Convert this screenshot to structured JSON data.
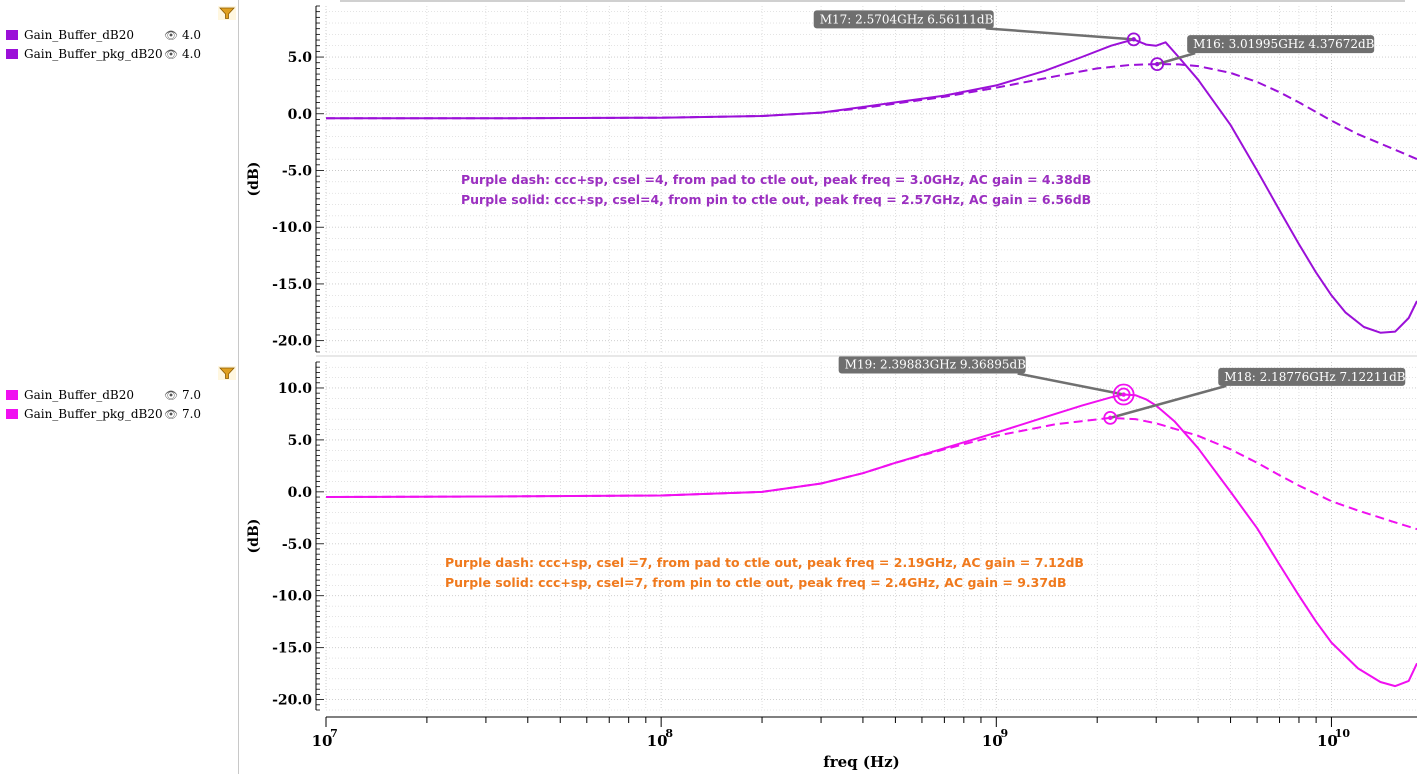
{
  "colors": {
    "top_series": "#9b10d8",
    "bottom_series": "#f010f0",
    "top_note": "#9b2fc0",
    "bottom_note": "#f07a1e",
    "marker_box": "#6f6f6f",
    "grid": "#c9c9c9"
  },
  "legends": [
    {
      "items": [
        {
          "name": "Gain_Buffer_dB20",
          "value": "4.0",
          "color": "#9b10d8"
        },
        {
          "name": "Gain_Buffer_pkg_dB20",
          "value": "4.0",
          "color": "#9b10d8"
        }
      ]
    },
    {
      "items": [
        {
          "name": "Gain_Buffer_dB20",
          "value": "7.0",
          "color": "#f010f0"
        },
        {
          "name": "Gain_Buffer_pkg_dB20",
          "value": "7.0",
          "color": "#f010f0"
        }
      ]
    }
  ],
  "xlabel": "freq (Hz)",
  "icons": {
    "legend_filter": "filter-funnel-icon",
    "legend_visibility": "eye-icon"
  },
  "chart_data": [
    {
      "type": "line",
      "x_scale": "log",
      "xlim": [
        10000000.0,
        18000000000.0
      ],
      "ylim": [
        -21,
        9.5
      ],
      "ylabel": "(dB)",
      "yticks": [
        5.0,
        0.0,
        -5.0,
        -10.0,
        -15.0,
        -20.0
      ],
      "ytick_labels": [
        "5.0",
        "0.0",
        "-5.0",
        "-10.0",
        "-15.0",
        "-20.0"
      ],
      "series": [
        {
          "name": "Gain_Buffer_dB20",
          "style": "solid",
          "color": "#9b10d8",
          "x": [
            10000000.0,
            30000000.0,
            100000000.0,
            200000000.0,
            300000000.0,
            400000000.0,
            500000000.0,
            700000000.0,
            1000000000.0,
            1400000000.0,
            1800000000.0,
            2200000000.0,
            2570400000.0,
            2800000000.0,
            3000000000.0,
            3200000000.0,
            3500000000.0,
            4000000000.0,
            5000000000.0,
            6000000000.0,
            7000000000.0,
            8000000000.0,
            9000000000.0,
            10000000000.0,
            11000000000.0,
            12500000000.0,
            14000000000.0,
            15500000000.0,
            17000000000.0,
            18000000000.0
          ],
          "y": [
            -0.4,
            -0.4,
            -0.35,
            -0.2,
            0.1,
            0.6,
            1.0,
            1.6,
            2.5,
            3.8,
            5.0,
            6.0,
            6.56,
            6.1,
            6.0,
            6.3,
            5.0,
            3.0,
            -1.0,
            -5.0,
            -8.5,
            -11.5,
            -14.0,
            -16.0,
            -17.5,
            -18.8,
            -19.3,
            -19.2,
            -18.0,
            -16.5
          ]
        },
        {
          "name": "Gain_Buffer_pkg_dB20",
          "style": "dash",
          "color": "#9b10d8",
          "x": [
            10000000.0,
            30000000.0,
            100000000.0,
            200000000.0,
            300000000.0,
            400000000.0,
            500000000.0,
            700000000.0,
            1000000000.0,
            1500000000.0,
            2000000000.0,
            2500000000.0,
            3000000000.0,
            3500000000.0,
            4000000000.0,
            5000000000.0,
            6000000000.0,
            7000000000.0,
            8000000000.0,
            10000000000.0,
            12000000000.0,
            15000000000.0,
            18000000000.0
          ],
          "y": [
            -0.4,
            -0.4,
            -0.35,
            -0.2,
            0.1,
            0.5,
            0.9,
            1.5,
            2.3,
            3.3,
            4.0,
            4.3,
            4.38,
            4.35,
            4.2,
            3.6,
            2.8,
            1.9,
            1.0,
            -0.6,
            -1.8,
            -3.0,
            -4.0
          ]
        }
      ],
      "markers": [
        {
          "label": "M17: 2.5704GHz 6.56111dB",
          "x": 2570400000.0,
          "y": 6.56111
        },
        {
          "label": "M16: 3.01995GHz 4.37672dB",
          "x": 3019950000.0,
          "y": 4.37672
        }
      ],
      "annotations": [
        "Purple dash: ccc+sp, csel =4, from pad to ctle out, peak freq = 3.0GHz, AC gain = 4.38dB",
        "Purple solid: ccc+sp, csel=4,  from pin to ctle out, peak freq = 2.57GHz, AC gain = 6.56dB"
      ]
    },
    {
      "type": "line",
      "x_scale": "log",
      "xlim": [
        10000000.0,
        18000000000.0
      ],
      "ylim": [
        -21,
        12.5
      ],
      "ylabel": "(dB)",
      "yticks": [
        10.0,
        5.0,
        0.0,
        -5.0,
        -10.0,
        -15.0,
        -20.0
      ],
      "ytick_labels": [
        "10.0",
        "5.0",
        "0.0",
        "-5.0",
        "-10.0",
        "-15.0",
        "-20.0"
      ],
      "xticks": [
        10000000.0,
        100000000.0,
        1000000000.0,
        10000000000.0
      ],
      "xtick_labels": [
        "10^7",
        "10^8",
        "10^9",
        "10^10"
      ],
      "series": [
        {
          "name": "Gain_Buffer_dB20",
          "style": "solid",
          "color": "#f010f0",
          "x": [
            10000000.0,
            30000000.0,
            100000000.0,
            200000000.0,
            300000000.0,
            400000000.0,
            500000000.0,
            700000000.0,
            1000000000.0,
            1400000000.0,
            1800000000.0,
            2200000000.0,
            2398830000.0,
            2600000000.0,
            2800000000.0,
            3000000000.0,
            3400000000.0,
            4000000000.0,
            5000000000.0,
            6000000000.0,
            7000000000.0,
            8000000000.0,
            9000000000.0,
            10000000000.0,
            12000000000.0,
            14000000000.0,
            15500000000.0,
            17000000000.0,
            18000000000.0
          ],
          "y": [
            -0.5,
            -0.45,
            -0.35,
            0.0,
            0.8,
            1.8,
            2.8,
            4.2,
            5.7,
            7.2,
            8.3,
            9.1,
            9.37,
            9.3,
            8.9,
            8.3,
            6.8,
            4.2,
            0.0,
            -3.5,
            -7.0,
            -10.0,
            -12.5,
            -14.5,
            -17.0,
            -18.3,
            -18.7,
            -18.2,
            -16.5
          ]
        },
        {
          "name": "Gain_Buffer_pkg_dB20",
          "style": "dash",
          "color": "#f010f0",
          "x": [
            10000000.0,
            30000000.0,
            100000000.0,
            200000000.0,
            300000000.0,
            400000000.0,
            500000000.0,
            700000000.0,
            1000000000.0,
            1500000000.0,
            2187760000.0,
            2600000000.0,
            3000000000.0,
            4000000000.0,
            5000000000.0,
            6000000000.0,
            7000000000.0,
            8000000000.0,
            10000000000.0,
            12000000000.0,
            15000000000.0,
            18000000000.0
          ],
          "y": [
            -0.5,
            -0.45,
            -0.35,
            0.0,
            0.8,
            1.8,
            2.8,
            4.1,
            5.4,
            6.5,
            7.12,
            7.0,
            6.6,
            5.4,
            4.1,
            2.8,
            1.6,
            0.6,
            -0.9,
            -1.8,
            -2.8,
            -3.6
          ]
        }
      ],
      "markers": [
        {
          "label": "M19: 2.39883GHz 9.36895dB",
          "x": 2398830000.0,
          "y": 9.36895
        },
        {
          "label": "M18: 2.18776GHz 7.12211dB",
          "x": 2187760000.0,
          "y": 7.12211
        }
      ],
      "annotations": [
        "Purple dash: ccc+sp, csel =7, from pad to ctle out, peak freq = 2.19GHz, AC gain = 7.12dB",
        "Purple solid: ccc+sp, csel=7, from pin to ctle out, peak freq = 2.4GHz, AC gain = 9.37dB"
      ]
    }
  ]
}
